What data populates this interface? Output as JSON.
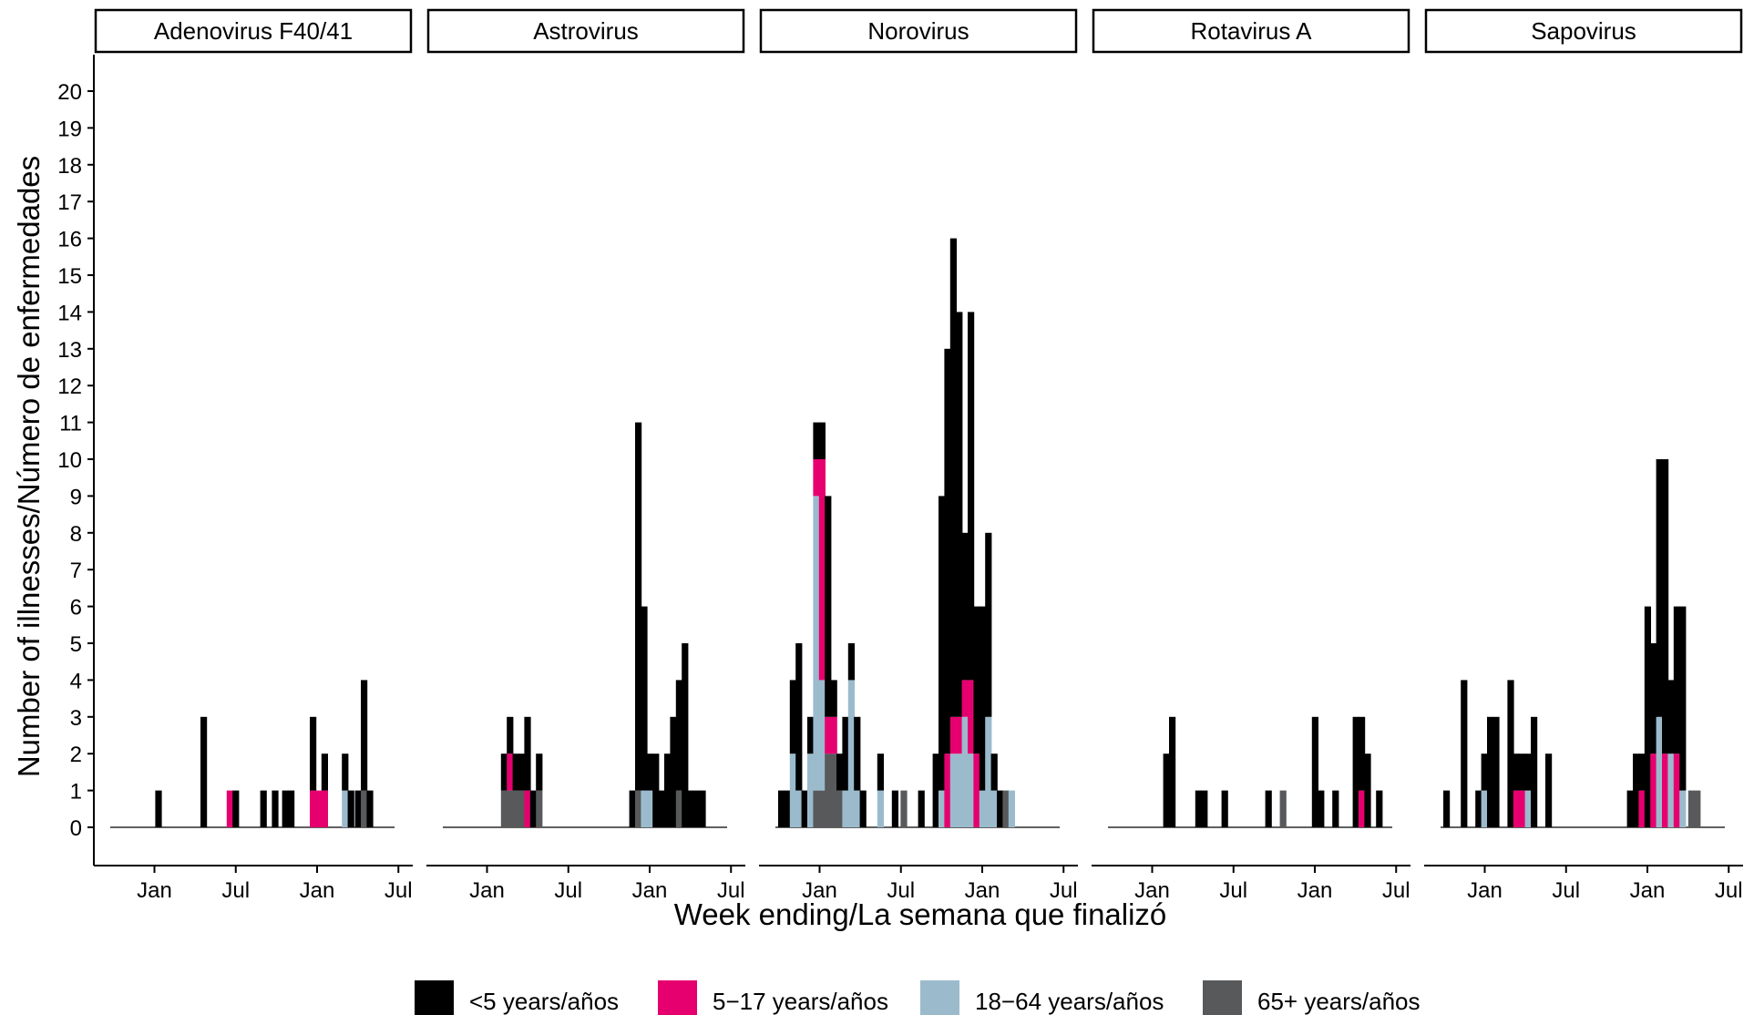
{
  "chart_data": {
    "type": "bar",
    "stacked": true,
    "xlabel": "Week ending/La semana que finalizó",
    "ylabel": "Number of illnesses/Número de enfermedades",
    "ylim": [
      0,
      20
    ],
    "yticks": [
      "0",
      "1",
      "2",
      "3",
      "4",
      "5",
      "6",
      "7",
      "8",
      "9",
      "10",
      "11",
      "12",
      "13",
      "14",
      "15",
      "16",
      "17",
      "18",
      "19",
      "20"
    ],
    "xticks": [
      "Jan",
      "Jul",
      "Jan",
      "Jul"
    ],
    "grid": false,
    "legend_position": "bottom",
    "legend": [
      {
        "key": "lt5",
        "label": "<5 years/años",
        "color": "#000000"
      },
      {
        "key": "a517",
        "label": "5−17 years/años",
        "color": "#e6006f"
      },
      {
        "key": "a1864",
        "label": "18−64 years/años",
        "color": "#9bbbcd"
      },
      {
        "key": "a65",
        "label": "65+ years/años",
        "color": "#58595b"
      }
    ],
    "panels": [
      {
        "title": "Adenovirus F40/41",
        "weeks": [
          {
            "t": 0.175,
            "lt5": 1
          },
          {
            "t": 0.33,
            "lt5": 3
          },
          {
            "t": 0.42,
            "a517": 1
          },
          {
            "t": 0.44,
            "lt5": 1
          },
          {
            "t": 0.535,
            "lt5": 1
          },
          {
            "t": 0.575,
            "lt5": 1
          },
          {
            "t": 0.61,
            "lt5": 1
          },
          {
            "t": 0.63,
            "lt5": 1
          },
          {
            "t": 0.705,
            "lt5": 2,
            "a517": 1
          },
          {
            "t": 0.725,
            "a517": 1
          },
          {
            "t": 0.745,
            "lt5": 1,
            "a517": 1
          },
          {
            "t": 0.815,
            "lt5": 1,
            "a1864": 1
          },
          {
            "t": 0.835,
            "lt5": 1
          },
          {
            "t": 0.86,
            "lt5": 1
          },
          {
            "t": 0.88,
            "lt5": 3,
            "a65": 1
          },
          {
            "t": 0.9,
            "lt5": 1
          }
        ]
      },
      {
        "title": "Astrovirus",
        "weeks": [
          {
            "t": 0.22,
            "lt5": 1,
            "a65": 1
          },
          {
            "t": 0.24,
            "lt5": 1,
            "a517": 1,
            "a65": 1
          },
          {
            "t": 0.26,
            "lt5": 1,
            "a65": 1
          },
          {
            "t": 0.28,
            "lt5": 1,
            "a65": 1
          },
          {
            "t": 0.3,
            "lt5": 2,
            "a517": 1
          },
          {
            "t": 0.32,
            "lt5": 1
          },
          {
            "t": 0.34,
            "lt5": 1,
            "a65": 1
          },
          {
            "t": 0.66,
            "lt5": 1
          },
          {
            "t": 0.68,
            "lt5": 10,
            "a65": 1
          },
          {
            "t": 0.7,
            "lt5": 5,
            "a1864": 1
          },
          {
            "t": 0.72,
            "lt5": 1,
            "a1864": 1
          },
          {
            "t": 0.74,
            "lt5": 2
          },
          {
            "t": 0.76,
            "lt5": 1
          },
          {
            "t": 0.78,
            "lt5": 2
          },
          {
            "t": 0.8,
            "lt5": 3
          },
          {
            "t": 0.82,
            "lt5": 3,
            "a65": 1
          },
          {
            "t": 0.84,
            "lt5": 5
          },
          {
            "t": 0.86,
            "lt5": 1
          },
          {
            "t": 0.88,
            "lt5": 1
          },
          {
            "t": 0.9,
            "lt5": 1
          }
        ]
      },
      {
        "title": "Norovirus",
        "weeks": [
          {
            "t": 0.03,
            "lt5": 1
          },
          {
            "t": 0.05,
            "lt5": 1
          },
          {
            "t": 0.07,
            "lt5": 2,
            "a1864": 2
          },
          {
            "t": 0.09,
            "lt5": 4,
            "a1864": 1
          },
          {
            "t": 0.11,
            "lt5": 1
          },
          {
            "t": 0.13,
            "lt5": 1,
            "a1864": 2
          },
          {
            "t": 0.15,
            "lt5": 1,
            "a517": 1,
            "a1864": 8,
            "a65": 1
          },
          {
            "t": 0.17,
            "lt5": 1,
            "a517": 6,
            "a1864": 3,
            "a65": 1
          },
          {
            "t": 0.19,
            "lt5": 6,
            "a517": 1,
            "a65": 2
          },
          {
            "t": 0.21,
            "lt5": 1,
            "a517": 1,
            "a65": 2
          },
          {
            "t": 0.23,
            "lt5": 1,
            "a65": 1
          },
          {
            "t": 0.25,
            "lt5": 2,
            "a1864": 1
          },
          {
            "t": 0.27,
            "lt5": 1,
            "a1864": 4
          },
          {
            "t": 0.29,
            "lt5": 2,
            "a1864": 1
          },
          {
            "t": 0.31,
            "lt5": 1
          },
          {
            "t": 0.37,
            "a1864": 1,
            "lt5": 1
          },
          {
            "t": 0.42,
            "lt5": 1
          },
          {
            "t": 0.45,
            "a65": 1
          },
          {
            "t": 0.51,
            "lt5": 1
          },
          {
            "t": 0.56,
            "lt5": 2
          },
          {
            "t": 0.58,
            "lt5": 8,
            "a1864": 1
          },
          {
            "t": 0.6,
            "lt5": 11,
            "a517": 2
          },
          {
            "t": 0.62,
            "lt5": 13,
            "a517": 1,
            "a1864": 2
          },
          {
            "t": 0.64,
            "lt5": 11,
            "a517": 1,
            "a1864": 2
          },
          {
            "t": 0.66,
            "lt5": 4,
            "a517": 1,
            "a1864": 3
          },
          {
            "t": 0.68,
            "lt5": 10,
            "a517": 2,
            "a1864": 2
          },
          {
            "t": 0.7,
            "lt5": 4,
            "a517": 2
          },
          {
            "t": 0.72,
            "lt5": 5,
            "a1864": 1
          },
          {
            "t": 0.74,
            "lt5": 5,
            "a1864": 3
          },
          {
            "t": 0.76,
            "lt5": 1,
            "a1864": 1
          },
          {
            "t": 0.78,
            "lt5": 1
          },
          {
            "t": 0.8,
            "a65": 1
          },
          {
            "t": 0.82,
            "a1864": 1
          }
        ]
      },
      {
        "title": "Rotavirus A",
        "weeks": [
          {
            "t": 0.21,
            "lt5": 2
          },
          {
            "t": 0.23,
            "lt5": 3
          },
          {
            "t": 0.32,
            "lt5": 1
          },
          {
            "t": 0.34,
            "lt5": 1
          },
          {
            "t": 0.41,
            "lt5": 1
          },
          {
            "t": 0.56,
            "lt5": 1
          },
          {
            "t": 0.61,
            "a65": 1
          },
          {
            "t": 0.72,
            "lt5": 3
          },
          {
            "t": 0.74,
            "lt5": 1
          },
          {
            "t": 0.79,
            "lt5": 1
          },
          {
            "t": 0.86,
            "lt5": 3
          },
          {
            "t": 0.88,
            "lt5": 2,
            "a517": 1
          },
          {
            "t": 0.9,
            "lt5": 2
          },
          {
            "t": 0.94,
            "lt5": 1
          }
        ]
      },
      {
        "title": "Sapovirus",
        "weeks": [
          {
            "t": 0.03,
            "lt5": 1
          },
          {
            "t": 0.09,
            "lt5": 4
          },
          {
            "t": 0.14,
            "lt5": 1
          },
          {
            "t": 0.16,
            "lt5": 1,
            "a1864": 1
          },
          {
            "t": 0.18,
            "lt5": 3
          },
          {
            "t": 0.2,
            "lt5": 3
          },
          {
            "t": 0.25,
            "lt5": 4
          },
          {
            "t": 0.27,
            "lt5": 1,
            "a517": 1
          },
          {
            "t": 0.29,
            "lt5": 1,
            "a517": 1
          },
          {
            "t": 0.31,
            "lt5": 1,
            "a1864": 1
          },
          {
            "t": 0.33,
            "lt5": 3
          },
          {
            "t": 0.38,
            "lt5": 2
          },
          {
            "t": 0.66,
            "lt5": 1
          },
          {
            "t": 0.68,
            "lt5": 2
          },
          {
            "t": 0.7,
            "lt5": 1,
            "a517": 1
          },
          {
            "t": 0.72,
            "lt5": 6
          },
          {
            "t": 0.74,
            "lt5": 3,
            "a517": 2
          },
          {
            "t": 0.76,
            "lt5": 7,
            "a1864": 3
          },
          {
            "t": 0.78,
            "lt5": 8,
            "a517": 2
          },
          {
            "t": 0.8,
            "lt5": 2,
            "a1864": 2
          },
          {
            "t": 0.82,
            "lt5": 4,
            "a517": 2
          },
          {
            "t": 0.84,
            "lt5": 5,
            "a1864": 1
          },
          {
            "t": 0.87,
            "a65": 1
          },
          {
            "t": 0.89,
            "a65": 1
          }
        ]
      }
    ]
  }
}
